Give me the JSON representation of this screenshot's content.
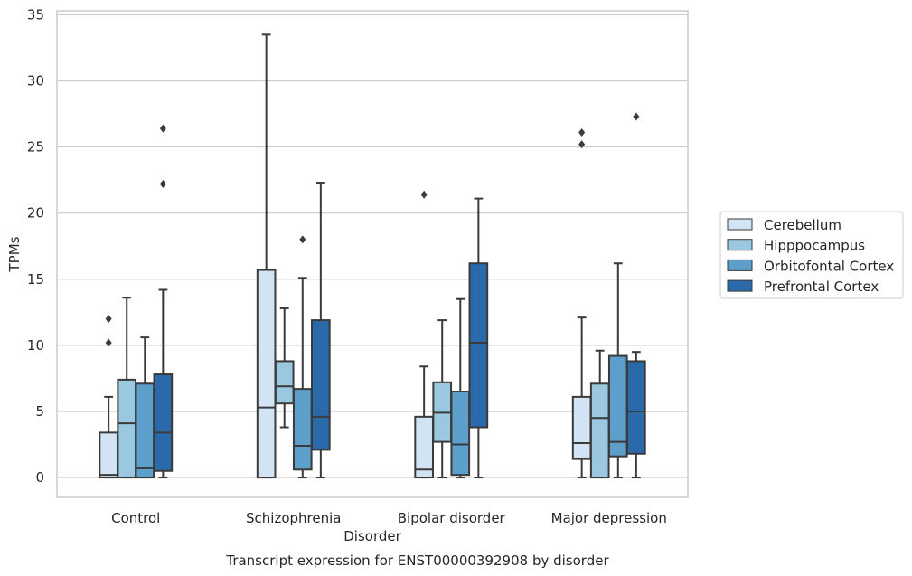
{
  "chart_data": {
    "type": "box",
    "caption": "Transcript expression for ENST00000392908 by disorder",
    "xlabel": "Disorder",
    "ylabel": "TPMs",
    "ylim": [
      -1.5,
      35.3
    ],
    "yticks": [
      0,
      5,
      10,
      15,
      20,
      25,
      30,
      35
    ],
    "grid": true,
    "legend_position": "right",
    "categories": [
      "Control",
      "Schizophrenia",
      "Bipolar disorder",
      "Major depression"
    ],
    "series": [
      {
        "name": "Cerebellum",
        "color": "#d2e3f3",
        "boxes": [
          {
            "category": "Control",
            "whisker_low": 0,
            "q1": 0,
            "median": 0.2,
            "q3": 3.4,
            "whisker_high": 6.1,
            "outliers": [
              10.2,
              12.0
            ]
          },
          {
            "category": "Schizophrenia",
            "whisker_low": 0,
            "q1": 0,
            "median": 5.3,
            "q3": 15.7,
            "whisker_high": 33.5,
            "outliers": []
          },
          {
            "category": "Bipolar disorder",
            "whisker_low": 0,
            "q1": 0,
            "median": 0.6,
            "q3": 4.6,
            "whisker_high": 8.4,
            "outliers": [
              21.4
            ]
          },
          {
            "category": "Major depression",
            "whisker_low": 0,
            "q1": 1.4,
            "median": 2.6,
            "q3": 6.1,
            "whisker_high": 12.1,
            "outliers": [
              25.2,
              26.1
            ]
          }
        ]
      },
      {
        "name": "Hipppocampus",
        "color": "#9ac8e0",
        "boxes": [
          {
            "category": "Control",
            "whisker_low": 0,
            "q1": 0,
            "median": 4.1,
            "q3": 7.4,
            "whisker_high": 13.6,
            "outliers": []
          },
          {
            "category": "Schizophrenia",
            "whisker_low": 3.8,
            "q1": 5.6,
            "median": 6.9,
            "q3": 8.8,
            "whisker_high": 12.8,
            "outliers": []
          },
          {
            "category": "Bipolar disorder",
            "whisker_low": 0,
            "q1": 2.7,
            "median": 4.9,
            "q3": 7.2,
            "whisker_high": 11.9,
            "outliers": []
          },
          {
            "category": "Major depression",
            "whisker_low": 0,
            "q1": 0,
            "median": 4.5,
            "q3": 7.1,
            "whisker_high": 9.6,
            "outliers": []
          }
        ]
      },
      {
        "name": "Orbitofontal Cortex",
        "color": "#5b9fca",
        "boxes": [
          {
            "category": "Control",
            "whisker_low": 0,
            "q1": 0,
            "median": 0.7,
            "q3": 7.1,
            "whisker_high": 10.6,
            "outliers": []
          },
          {
            "category": "Schizophrenia",
            "whisker_low": 0,
            "q1": 0.6,
            "median": 2.4,
            "q3": 6.7,
            "whisker_high": 15.1,
            "outliers": [
              18.0
            ]
          },
          {
            "category": "Bipolar disorder",
            "whisker_low": 0,
            "q1": 0.2,
            "median": 2.5,
            "q3": 6.5,
            "whisker_high": 13.5,
            "outliers": []
          },
          {
            "category": "Major depression",
            "whisker_low": 0,
            "q1": 1.6,
            "median": 2.7,
            "q3": 9.2,
            "whisker_high": 16.2,
            "outliers": []
          }
        ]
      },
      {
        "name": "Prefrontal Cortex",
        "color": "#2b6aaa",
        "boxes": [
          {
            "category": "Control",
            "whisker_low": 0,
            "q1": 0.5,
            "median": 3.4,
            "q3": 7.8,
            "whisker_high": 14.2,
            "outliers": [
              22.2,
              26.4
            ]
          },
          {
            "category": "Schizophrenia",
            "whisker_low": 0,
            "q1": 2.1,
            "median": 4.6,
            "q3": 11.9,
            "whisker_high": 22.3,
            "outliers": []
          },
          {
            "category": "Bipolar disorder",
            "whisker_low": 0,
            "q1": 3.8,
            "median": 10.2,
            "q3": 16.2,
            "whisker_high": 21.1,
            "outliers": []
          },
          {
            "category": "Major depression",
            "whisker_low": 0,
            "q1": 1.8,
            "median": 5.0,
            "q3": 8.8,
            "whisker_high": 9.5,
            "outliers": [
              27.3
            ]
          }
        ]
      }
    ]
  }
}
